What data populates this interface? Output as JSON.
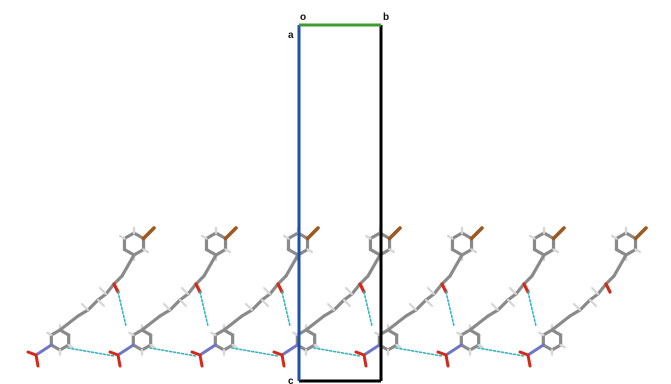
{
  "cell": {
    "labels": {
      "origin": "o",
      "a": "a",
      "b": "b",
      "c": "c"
    },
    "colors": {
      "a_axis": "#1f4fa6",
      "b_axis": "#3f9a2f",
      "c_axis": "#000000",
      "edges": "#000000"
    }
  },
  "molecule": {
    "count": 7,
    "colors": {
      "carbon": "#8a8a8a",
      "hydrogen": "#d6d6d6",
      "oxygen": "#d42a1b",
      "nitrogen": "#6f76c9",
      "bromine": "#9a5a22",
      "hbond": "#2fb8c4"
    }
  }
}
